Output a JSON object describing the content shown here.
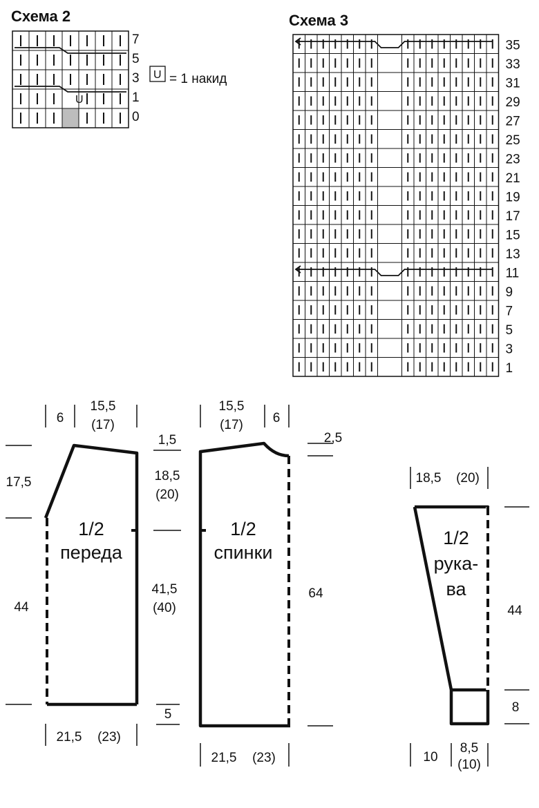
{
  "schema2": {
    "title": "Схема 2",
    "cols": 7,
    "row_labels": [
      "7",
      "5",
      "3",
      "1",
      "0"
    ],
    "yarn_over_symbol": "U",
    "shaded_color": "#bdbdbd"
  },
  "legend": {
    "symbol": "U",
    "text": "= 1 накид"
  },
  "schema3": {
    "title": "Схема 3",
    "cols": 17,
    "row_labels": [
      "35",
      "33",
      "31",
      "29",
      "27",
      "25",
      "23",
      "21",
      "19",
      "17",
      "15",
      "13",
      "11",
      "9",
      "7",
      "5",
      "3",
      "1"
    ]
  },
  "front": {
    "name_line1": "1/2",
    "name_line2": "переда",
    "top_left": "6",
    "top_right_1": "15,5",
    "top_right_2": "(17)",
    "left_upper": "17,5",
    "left_lower": "44",
    "shoulder_drop": "1,5",
    "right_upper_1": "18,5",
    "right_upper_2": "(20)",
    "right_lower_1": "41,5",
    "right_lower_2": "(40)",
    "hem_offset": "5",
    "bottom_1": "21,5",
    "bottom_2": "(23)"
  },
  "back": {
    "name_line1": "1/2",
    "name_line2": "спинки",
    "top_left_1": "15,5",
    "top_left_2": "(17)",
    "top_right": "6",
    "neck_depth": "2,5",
    "height": "64",
    "bottom_1": "21,5",
    "bottom_2": "(23)"
  },
  "sleeve": {
    "name_line1": "1/2",
    "name_line2": "рука-",
    "name_line3": "ва",
    "top_1": "18,5",
    "top_2": "(20)",
    "height": "44",
    "cuff": "8",
    "bottom_left": "10",
    "bottom_right_1": "8,5",
    "bottom_right_2": "(10)"
  }
}
